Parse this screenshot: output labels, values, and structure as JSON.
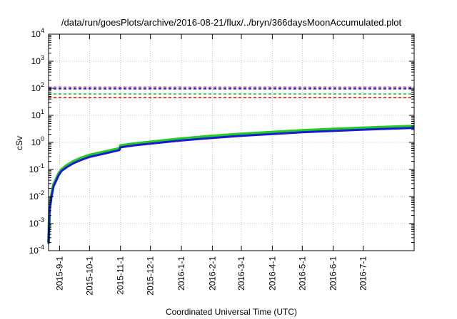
{
  "chart_data": {
    "type": "line",
    "title": "/data/run/goesPlots/archive/2016-08-21/flux/../bryn/366daysMoonAccumulated.plot",
    "xlabel": "Coordinated Universal Time (UTC)",
    "ylabel": "cSv",
    "yscale": "log",
    "ylim": [
      0.0001,
      10000
    ],
    "xlim": [
      "2015-08-21",
      "2016-08-21"
    ],
    "grid": true,
    "y_ticks": [
      {
        "base": "10",
        "exp": "-4",
        "value": 0.0001
      },
      {
        "base": "10",
        "exp": "-3",
        "value": 0.001
      },
      {
        "base": "10",
        "exp": "-2",
        "value": 0.01
      },
      {
        "base": "10",
        "exp": "-1",
        "value": 0.1
      },
      {
        "base": "10",
        "exp": "0",
        "value": 1
      },
      {
        "base": "10",
        "exp": "1",
        "value": 10
      },
      {
        "base": "10",
        "exp": "2",
        "value": 100
      },
      {
        "base": "10",
        "exp": "3",
        "value": 1000
      },
      {
        "base": "10",
        "exp": "4",
        "value": 10000
      }
    ],
    "x_ticks": [
      {
        "label": "2015-9-1",
        "date": "2015-09-01"
      },
      {
        "label": "2015-10-1",
        "date": "2015-10-01"
      },
      {
        "label": "2015-11-1",
        "date": "2015-11-01"
      },
      {
        "label": "2015-12-1",
        "date": "2015-12-01"
      },
      {
        "label": "2016-1-1",
        "date": "2016-01-01"
      },
      {
        "label": "2016-2-1",
        "date": "2016-02-01"
      },
      {
        "label": "2016-3-1",
        "date": "2016-03-01"
      },
      {
        "label": "2016-4-1",
        "date": "2016-04-01"
      },
      {
        "label": "2016-5-1",
        "date": "2016-05-01"
      },
      {
        "label": "2016-6-1",
        "date": "2016-06-01"
      },
      {
        "label": "2016-7-1",
        "date": "2016-07-01"
      }
    ],
    "thresholds": [
      {
        "value": 110,
        "color": "#9c27b0"
      },
      {
        "value": 95,
        "color": "#1a1ad6"
      },
      {
        "value": 62,
        "color": "#22cc22"
      },
      {
        "value": 45,
        "color": "#e01010"
      }
    ],
    "series": [
      {
        "color": "#22cc22",
        "x": [
          "2015-08-21",
          "2015-08-22",
          "2015-08-24",
          "2015-08-26",
          "2015-08-28",
          "2015-08-31",
          "2015-09-03",
          "2015-09-08",
          "2015-09-15",
          "2015-09-22",
          "2015-10-01",
          "2015-10-15",
          "2015-10-31",
          "2015-11-01",
          "2015-11-15",
          "2015-12-01",
          "2016-01-01",
          "2016-02-01",
          "2016-03-01",
          "2016-04-01",
          "2016-05-01",
          "2016-06-01",
          "2016-07-01",
          "2016-08-21"
        ],
        "y": [
          0.0002,
          0.0035,
          0.012,
          0.028,
          0.04,
          0.07,
          0.1,
          0.14,
          0.2,
          0.26,
          0.34,
          0.44,
          0.6,
          0.76,
          0.9,
          1.04,
          1.38,
          1.72,
          2.06,
          2.4,
          2.76,
          3.1,
          3.45,
          4.0
        ]
      },
      {
        "color": "#1a1ad6",
        "x": [
          "2015-08-21",
          "2015-08-22",
          "2015-08-24",
          "2015-08-26",
          "2015-08-28",
          "2015-08-31",
          "2015-09-03",
          "2015-09-08",
          "2015-09-15",
          "2015-09-22",
          "2015-10-01",
          "2015-10-15",
          "2015-10-31",
          "2015-11-01",
          "2015-11-15",
          "2015-12-01",
          "2016-01-01",
          "2016-02-01",
          "2016-03-01",
          "2016-04-01",
          "2016-05-01",
          "2016-06-01",
          "2016-07-01",
          "2016-08-21"
        ],
        "y": [
          0.00018,
          0.003,
          0.01,
          0.024,
          0.034,
          0.06,
          0.088,
          0.12,
          0.17,
          0.22,
          0.29,
          0.38,
          0.52,
          0.66,
          0.78,
          0.9,
          1.18,
          1.46,
          1.76,
          2.05,
          2.36,
          2.66,
          2.96,
          3.45
        ]
      }
    ]
  }
}
